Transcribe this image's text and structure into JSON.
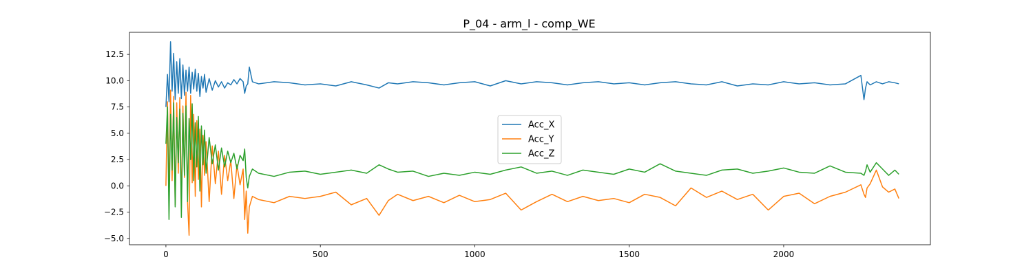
{
  "chart_data": {
    "type": "line",
    "title": "P_04 - arm_l - comp_WE",
    "xlabel": "",
    "ylabel": "",
    "xlim": [
      -118,
      2475
    ],
    "ylim": [
      -5.6,
      14.6
    ],
    "xticks": [
      0,
      500,
      1000,
      1500,
      2000
    ],
    "xtick_labels": [
      "0",
      "500",
      "1000",
      "1500",
      "2000"
    ],
    "yticks": [
      -5.0,
      -2.5,
      0.0,
      2.5,
      5.0,
      7.5,
      10.0,
      12.5
    ],
    "ytick_labels": [
      "−5.0",
      "−2.5",
      "0.0",
      "2.5",
      "5.0",
      "7.5",
      "10.0",
      "12.5"
    ],
    "grid": false,
    "legend": "center",
    "series": [
      {
        "name": "Acc_X",
        "color": "#1f77b4",
        "x": [
          0,
          5,
          10,
          15,
          20,
          25,
          30,
          35,
          40,
          45,
          50,
          55,
          60,
          65,
          70,
          75,
          80,
          85,
          90,
          95,
          100,
          105,
          110,
          115,
          120,
          125,
          130,
          140,
          150,
          160,
          170,
          180,
          190,
          200,
          210,
          220,
          230,
          240,
          250,
          255,
          260,
          265,
          270,
          280,
          300,
          350,
          400,
          450,
          500,
          550,
          600,
          650,
          690,
          720,
          750,
          800,
          850,
          900,
          950,
          1000,
          1050,
          1100,
          1150,
          1200,
          1250,
          1300,
          1350,
          1400,
          1450,
          1500,
          1550,
          1600,
          1650,
          1700,
          1750,
          1800,
          1850,
          1900,
          1950,
          2000,
          2050,
          2100,
          2150,
          2200,
          2250,
          2260,
          2265,
          2270,
          2280,
          2300,
          2320,
          2340,
          2360,
          2373
        ],
        "values": [
          7.5,
          10.6,
          8.0,
          13.7,
          9.0,
          12.6,
          8.2,
          11.8,
          8.8,
          12.1,
          8.3,
          11.5,
          8.6,
          11.0,
          9.0,
          11.3,
          8.8,
          10.8,
          9.2,
          11.1,
          9.0,
          10.7,
          8.5,
          10.4,
          9.3,
          10.6,
          8.9,
          10.2,
          9.1,
          10.0,
          9.4,
          9.9,
          9.3,
          9.8,
          9.6,
          10.1,
          9.7,
          10.2,
          9.9,
          8.8,
          9.5,
          9.7,
          11.3,
          9.9,
          9.7,
          9.9,
          9.8,
          9.6,
          9.7,
          9.5,
          9.9,
          9.6,
          9.3,
          9.8,
          9.7,
          9.9,
          9.8,
          9.6,
          9.8,
          9.9,
          9.5,
          10.0,
          9.7,
          9.9,
          9.8,
          9.6,
          9.8,
          9.9,
          9.7,
          9.8,
          9.6,
          9.8,
          9.9,
          9.7,
          9.6,
          9.9,
          9.5,
          9.7,
          9.6,
          9.9,
          9.7,
          9.8,
          9.6,
          9.7,
          10.5,
          8.2,
          9.3,
          9.9,
          9.6,
          9.9,
          9.7,
          9.9,
          9.8,
          9.7
        ]
      },
      {
        "name": "Acc_Y",
        "color": "#ff7f0e",
        "x": [
          0,
          5,
          10,
          15,
          20,
          25,
          30,
          35,
          40,
          45,
          50,
          55,
          60,
          65,
          70,
          75,
          80,
          85,
          90,
          95,
          100,
          105,
          110,
          115,
          120,
          125,
          130,
          140,
          150,
          160,
          170,
          180,
          190,
          200,
          210,
          220,
          230,
          240,
          250,
          255,
          260,
          265,
          270,
          280,
          300,
          350,
          400,
          450,
          500,
          550,
          600,
          650,
          690,
          720,
          750,
          800,
          850,
          900,
          950,
          1000,
          1050,
          1100,
          1150,
          1200,
          1250,
          1300,
          1350,
          1400,
          1450,
          1500,
          1550,
          1600,
          1650,
          1700,
          1750,
          1800,
          1850,
          1900,
          1950,
          2000,
          2050,
          2100,
          2150,
          2200,
          2250,
          2260,
          2265,
          2270,
          2280,
          2300,
          2320,
          2340,
          2360,
          2373
        ],
        "values": [
          0.0,
          8.0,
          -1.1,
          9.1,
          0.5,
          8.5,
          -1.8,
          7.9,
          1.2,
          8.4,
          -2.1,
          7.6,
          0.8,
          8.9,
          -1.5,
          -4.7,
          8.6,
          0.3,
          6.8,
          -1.0,
          6.2,
          0.6,
          5.4,
          -2.0,
          4.8,
          1.0,
          4.2,
          -1.5,
          3.8,
          0.2,
          3.3,
          -0.8,
          2.9,
          0.5,
          2.4,
          -1.2,
          2.0,
          0.1,
          1.6,
          -3.2,
          -0.5,
          -4.5,
          -2.0,
          -1.0,
          -1.3,
          -1.6,
          -1.0,
          -1.2,
          -1.0,
          -0.6,
          -1.8,
          -1.2,
          -2.8,
          -1.4,
          -0.8,
          -1.4,
          -1.0,
          -1.6,
          -0.9,
          -1.5,
          -1.3,
          -0.7,
          -2.3,
          -1.5,
          -0.8,
          -1.5,
          -1.0,
          -1.4,
          -1.2,
          -1.6,
          -0.8,
          -1.1,
          -1.9,
          -0.2,
          -1.1,
          -0.5,
          -1.3,
          -0.8,
          -2.3,
          -1.0,
          -0.7,
          -1.7,
          -1.0,
          -0.6,
          0.1,
          -0.8,
          -1.1,
          -0.2,
          0.2,
          1.5,
          -0.1,
          -0.6,
          -0.3,
          -1.2
        ]
      },
      {
        "name": "Acc_Z",
        "color": "#2ca02c",
        "x": [
          0,
          5,
          10,
          15,
          20,
          25,
          30,
          35,
          40,
          45,
          50,
          55,
          60,
          65,
          70,
          75,
          80,
          85,
          90,
          95,
          100,
          105,
          110,
          115,
          120,
          125,
          130,
          140,
          150,
          160,
          170,
          180,
          190,
          200,
          210,
          220,
          230,
          240,
          250,
          255,
          260,
          265,
          270,
          280,
          300,
          350,
          400,
          450,
          500,
          550,
          600,
          650,
          690,
          720,
          750,
          800,
          850,
          900,
          950,
          1000,
          1050,
          1100,
          1150,
          1200,
          1250,
          1300,
          1350,
          1400,
          1450,
          1500,
          1550,
          1600,
          1650,
          1700,
          1750,
          1800,
          1850,
          1900,
          1950,
          2000,
          2050,
          2100,
          2150,
          2200,
          2250,
          2260,
          2265,
          2270,
          2280,
          2300,
          2320,
          2340,
          2360,
          2373
        ],
        "values": [
          4.0,
          7.5,
          -3.2,
          6.8,
          1.5,
          7.9,
          -2.0,
          6.5,
          2.2,
          7.3,
          -3.0,
          6.9,
          1.0,
          7.6,
          -1.5,
          6.4,
          2.5,
          7.8,
          0.5,
          6.0,
          1.8,
          6.6,
          -0.5,
          5.7,
          2.0,
          5.3,
          1.2,
          4.6,
          2.1,
          3.9,
          1.5,
          3.6,
          1.8,
          3.3,
          2.2,
          3.1,
          1.6,
          2.9,
          2.4,
          3.5,
          0.8,
          -0.2,
          0.9,
          1.6,
          1.2,
          0.9,
          1.3,
          1.4,
          1.1,
          1.3,
          1.5,
          1.2,
          2.0,
          1.6,
          1.3,
          1.4,
          0.9,
          1.2,
          1.0,
          1.3,
          1.1,
          1.5,
          1.8,
          1.2,
          1.4,
          1.0,
          1.5,
          1.3,
          1.1,
          1.6,
          1.3,
          2.1,
          1.4,
          1.2,
          1.0,
          1.5,
          1.6,
          1.2,
          1.4,
          1.7,
          1.3,
          1.2,
          1.9,
          1.3,
          1.2,
          1.0,
          1.4,
          2.0,
          1.3,
          2.2,
          1.6,
          1.0,
          1.5,
          1.1
        ]
      }
    ]
  },
  "colors": {
    "axis": "#000000",
    "background": "#ffffff",
    "legend_border": "#cccccc"
  }
}
